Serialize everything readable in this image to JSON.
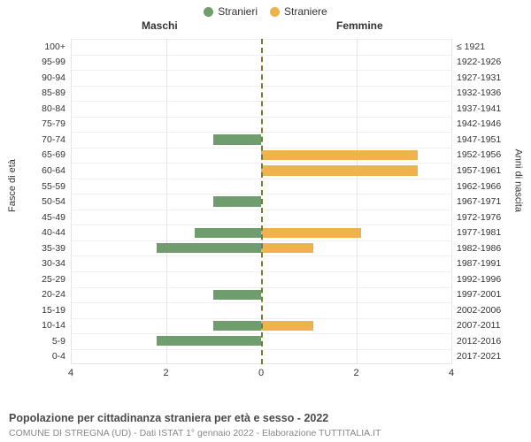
{
  "legend": {
    "male": {
      "label": "Stranieri",
      "color": "#6f9d6d"
    },
    "female": {
      "label": "Straniere",
      "color": "#f0b34b"
    }
  },
  "headers": {
    "male": "Maschi",
    "female": "Femmine"
  },
  "axis_titles": {
    "left": "Fasce di età",
    "right": "Anni di nascita"
  },
  "chart": {
    "type": "population-pyramid",
    "xlim_each_side": 4,
    "xticks": [
      4,
      2,
      0,
      2,
      4
    ],
    "background_color": "#ffffff",
    "grid_color": "#e5e5e5",
    "zero_line_color": "#7a7a36",
    "bar_colors": {
      "male": "#6f9d6d",
      "female": "#f0b34b"
    },
    "label_fontsize": 10.5,
    "tick_fontsize": 11,
    "rows": [
      {
        "age": "100+",
        "birth": "≤ 1921",
        "m": 0,
        "f": 0
      },
      {
        "age": "95-99",
        "birth": "1922-1926",
        "m": 0,
        "f": 0
      },
      {
        "age": "90-94",
        "birth": "1927-1931",
        "m": 0,
        "f": 0
      },
      {
        "age": "85-89",
        "birth": "1932-1936",
        "m": 0,
        "f": 0
      },
      {
        "age": "80-84",
        "birth": "1937-1941",
        "m": 0,
        "f": 0
      },
      {
        "age": "75-79",
        "birth": "1942-1946",
        "m": 0,
        "f": 0
      },
      {
        "age": "70-74",
        "birth": "1947-1951",
        "m": 1,
        "f": 0
      },
      {
        "age": "65-69",
        "birth": "1952-1956",
        "m": 0,
        "f": 3.3
      },
      {
        "age": "60-64",
        "birth": "1957-1961",
        "m": 0,
        "f": 3.3
      },
      {
        "age": "55-59",
        "birth": "1962-1966",
        "m": 0,
        "f": 0
      },
      {
        "age": "50-54",
        "birth": "1967-1971",
        "m": 1,
        "f": 0
      },
      {
        "age": "45-49",
        "birth": "1972-1976",
        "m": 0,
        "f": 0
      },
      {
        "age": "40-44",
        "birth": "1977-1981",
        "m": 1.4,
        "f": 2.1
      },
      {
        "age": "35-39",
        "birth": "1982-1986",
        "m": 2.2,
        "f": 1.1
      },
      {
        "age": "30-34",
        "birth": "1987-1991",
        "m": 0,
        "f": 0
      },
      {
        "age": "25-29",
        "birth": "1992-1996",
        "m": 0,
        "f": 0
      },
      {
        "age": "20-24",
        "birth": "1997-2001",
        "m": 1,
        "f": 0
      },
      {
        "age": "15-19",
        "birth": "2002-2006",
        "m": 0,
        "f": 0
      },
      {
        "age": "10-14",
        "birth": "2007-2011",
        "m": 1,
        "f": 1.1
      },
      {
        "age": "5-9",
        "birth": "2012-2016",
        "m": 2.2,
        "f": 0
      },
      {
        "age": "0-4",
        "birth": "2017-2021",
        "m": 0,
        "f": 0
      }
    ]
  },
  "title": "Popolazione per cittadinanza straniera per età e sesso - 2022",
  "subtitle": "COMUNE DI STREGNA (UD) - Dati ISTAT 1° gennaio 2022 - Elaborazione TUTTITALIA.IT"
}
